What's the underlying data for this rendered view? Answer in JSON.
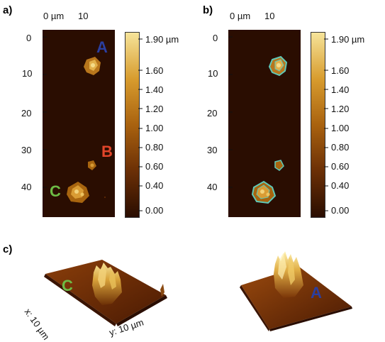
{
  "panels": {
    "a": {
      "label": "a)"
    },
    "b": {
      "label": "b)"
    },
    "c": {
      "label": "c)"
    }
  },
  "x_axis": {
    "ticks": [
      "0 µm",
      "10"
    ]
  },
  "y_axis": {
    "ticks": [
      "0",
      "10",
      "20",
      "30",
      "40"
    ]
  },
  "colorbar": {
    "labels": [
      "1.90 µm",
      "1.60",
      "1.40",
      "1.20",
      "1.00",
      "0.80",
      "0.60",
      "0.40",
      "0.00"
    ],
    "range": [
      0.0,
      1.9
    ],
    "gradient": [
      "#2a0d01",
      "#6b2f06",
      "#a9620f",
      "#d89c2e",
      "#f6e49a"
    ]
  },
  "particles": {
    "A": {
      "label": "A",
      "color": "#2b3fa0"
    },
    "B": {
      "label": "B",
      "color": "#e2452a"
    },
    "C": {
      "label": "C",
      "color": "#6dbb45"
    }
  },
  "panel_c": {
    "x_label": "x: 10 µm",
    "y_label": "y: 10 µm",
    "left_particle": "C",
    "right_particle": "A"
  },
  "colors": {
    "background_map": "#2a0d01",
    "mask_outline": "#5fc9b8"
  }
}
